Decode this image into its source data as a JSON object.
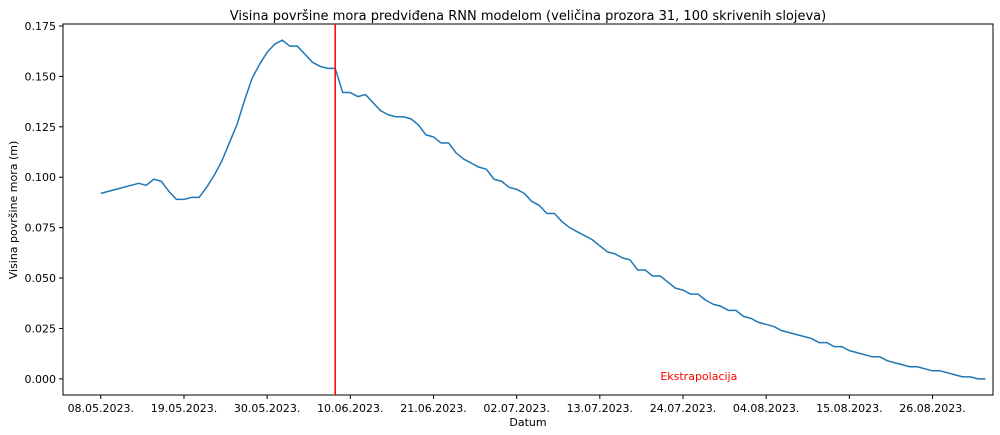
{
  "chart_data": {
    "type": "line",
    "title": "Visina površine mora predviđena RNN modelom (veličina prozora 31, 100 skrivenih slojeva)",
    "xlabel": "Datum",
    "ylabel": "Visina površine mora (m)",
    "ylim": [
      -0.008,
      0.176
    ],
    "xlim": [
      "2023-05-03",
      "2023-09-03"
    ],
    "grid": false,
    "x_tick_labels": [
      "08.05.2023.",
      "19.05.2023.",
      "30.05.2023.",
      "10.06.2023.",
      "21.06.2023.",
      "02.07.2023.",
      "13.07.2023.",
      "24.07.2023.",
      "04.08.2023.",
      "15.08.2023.",
      "26.08.2023."
    ],
    "y_tick_labels": [
      "0.000",
      "0.025",
      "0.050",
      "0.075",
      "0.100",
      "0.125",
      "0.150",
      "0.175"
    ],
    "y_ticks": [
      0,
      0.025,
      0.05,
      0.075,
      0.1,
      0.125,
      0.15,
      0.175
    ],
    "vline": {
      "x": "2023-06-08",
      "color": "#ff0000"
    },
    "annotation": {
      "text": "Ekstrapolacija",
      "x": "2023-07-21",
      "y": 0.0,
      "color": "#ff0000"
    },
    "series": [
      {
        "color": "#1f77b4",
        "points": [
          [
            "2023-05-08",
            0.092
          ],
          [
            "2023-05-10",
            0.094
          ],
          [
            "2023-05-12",
            0.096
          ],
          [
            "2023-05-13",
            0.097
          ],
          [
            "2023-05-14",
            0.096
          ],
          [
            "2023-05-15",
            0.099
          ],
          [
            "2023-05-16",
            0.098
          ],
          [
            "2023-05-17",
            0.093
          ],
          [
            "2023-05-18",
            0.089
          ],
          [
            "2023-05-19",
            0.089
          ],
          [
            "2023-05-20",
            0.09
          ],
          [
            "2023-05-21",
            0.09
          ],
          [
            "2023-05-22",
            0.095
          ],
          [
            "2023-05-23",
            0.101
          ],
          [
            "2023-05-24",
            0.108
          ],
          [
            "2023-05-25",
            0.117
          ],
          [
            "2023-05-26",
            0.126
          ],
          [
            "2023-05-27",
            0.138
          ],
          [
            "2023-05-28",
            0.149
          ],
          [
            "2023-05-29",
            0.156
          ],
          [
            "2023-05-30",
            0.162
          ],
          [
            "2023-05-31",
            0.166
          ],
          [
            "2023-06-01",
            0.168
          ],
          [
            "2023-06-02",
            0.165
          ],
          [
            "2023-06-03",
            0.165
          ],
          [
            "2023-06-04",
            0.161
          ],
          [
            "2023-06-05",
            0.157
          ],
          [
            "2023-06-06",
            0.155
          ],
          [
            "2023-06-07",
            0.154
          ],
          [
            "2023-06-08",
            0.154
          ],
          [
            "2023-06-09",
            0.142
          ],
          [
            "2023-06-10",
            0.142
          ],
          [
            "2023-06-11",
            0.14
          ],
          [
            "2023-06-12",
            0.141
          ],
          [
            "2023-06-13",
            0.137
          ],
          [
            "2023-06-14",
            0.133
          ],
          [
            "2023-06-15",
            0.131
          ],
          [
            "2023-06-16",
            0.13
          ],
          [
            "2023-06-17",
            0.13
          ],
          [
            "2023-06-18",
            0.129
          ],
          [
            "2023-06-19",
            0.126
          ],
          [
            "2023-06-20",
            0.121
          ],
          [
            "2023-06-21",
            0.12
          ],
          [
            "2023-06-22",
            0.117
          ],
          [
            "2023-06-23",
            0.117
          ],
          [
            "2023-06-24",
            0.112
          ],
          [
            "2023-06-25",
            0.109
          ],
          [
            "2023-06-26",
            0.107
          ],
          [
            "2023-06-27",
            0.105
          ],
          [
            "2023-06-28",
            0.104
          ],
          [
            "2023-06-29",
            0.099
          ],
          [
            "2023-06-30",
            0.098
          ],
          [
            "2023-07-01",
            0.095
          ],
          [
            "2023-07-02",
            0.094
          ],
          [
            "2023-07-03",
            0.092
          ],
          [
            "2023-07-04",
            0.088
          ],
          [
            "2023-07-05",
            0.086
          ],
          [
            "2023-07-06",
            0.082
          ],
          [
            "2023-07-07",
            0.082
          ],
          [
            "2023-07-08",
            0.078
          ],
          [
            "2023-07-09",
            0.075
          ],
          [
            "2023-07-10",
            0.073
          ],
          [
            "2023-07-11",
            0.071
          ],
          [
            "2023-07-12",
            0.069
          ],
          [
            "2023-07-13",
            0.066
          ],
          [
            "2023-07-14",
            0.063
          ],
          [
            "2023-07-15",
            0.062
          ],
          [
            "2023-07-16",
            0.06
          ],
          [
            "2023-07-17",
            0.059
          ],
          [
            "2023-07-18",
            0.054
          ],
          [
            "2023-07-19",
            0.054
          ],
          [
            "2023-07-20",
            0.051
          ],
          [
            "2023-07-21",
            0.051
          ],
          [
            "2023-07-22",
            0.048
          ],
          [
            "2023-07-23",
            0.045
          ],
          [
            "2023-07-24",
            0.044
          ],
          [
            "2023-07-25",
            0.042
          ],
          [
            "2023-07-26",
            0.042
          ],
          [
            "2023-07-27",
            0.039
          ],
          [
            "2023-07-28",
            0.037
          ],
          [
            "2023-07-29",
            0.036
          ],
          [
            "2023-07-30",
            0.034
          ],
          [
            "2023-07-31",
            0.034
          ],
          [
            "2023-08-01",
            0.031
          ],
          [
            "2023-08-02",
            0.03
          ],
          [
            "2023-08-03",
            0.028
          ],
          [
            "2023-08-04",
            0.027
          ],
          [
            "2023-08-05",
            0.026
          ],
          [
            "2023-08-06",
            0.024
          ],
          [
            "2023-08-07",
            0.023
          ],
          [
            "2023-08-08",
            0.022
          ],
          [
            "2023-08-09",
            0.021
          ],
          [
            "2023-08-10",
            0.02
          ],
          [
            "2023-08-11",
            0.018
          ],
          [
            "2023-08-12",
            0.018
          ],
          [
            "2023-08-13",
            0.016
          ],
          [
            "2023-08-14",
            0.016
          ],
          [
            "2023-08-15",
            0.014
          ],
          [
            "2023-08-16",
            0.013
          ],
          [
            "2023-08-17",
            0.012
          ],
          [
            "2023-08-18",
            0.011
          ],
          [
            "2023-08-19",
            0.011
          ],
          [
            "2023-08-20",
            0.009
          ],
          [
            "2023-08-21",
            0.008
          ],
          [
            "2023-08-22",
            0.007
          ],
          [
            "2023-08-23",
            0.006
          ],
          [
            "2023-08-24",
            0.006
          ],
          [
            "2023-08-25",
            0.005
          ],
          [
            "2023-08-26",
            0.004
          ],
          [
            "2023-08-27",
            0.004
          ],
          [
            "2023-08-28",
            0.003
          ],
          [
            "2023-08-29",
            0.002
          ],
          [
            "2023-08-30",
            0.001
          ],
          [
            "2023-08-31",
            0.001
          ],
          [
            "2023-09-01",
            0.0
          ],
          [
            "2023-09-02",
            0.0
          ]
        ]
      }
    ]
  }
}
